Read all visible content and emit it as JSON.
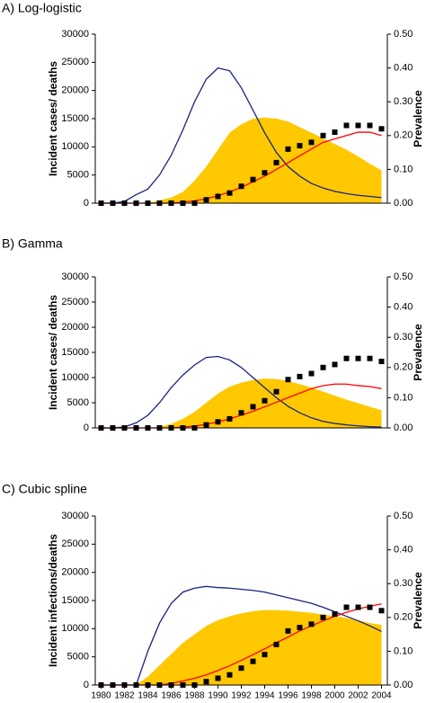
{
  "chart_data": [
    {
      "type": "line",
      "title": "A) Log-logistic",
      "ylabel": "Incident cases/ deaths",
      "y2label": "Prevalence",
      "x": [
        1980,
        1981,
        1982,
        1983,
        1984,
        1985,
        1986,
        1987,
        1988,
        1989,
        1990,
        1991,
        1992,
        1993,
        1994,
        1995,
        1996,
        1997,
        1998,
        1999,
        2000,
        2001,
        2002,
        2003,
        2004
      ],
      "xlim": [
        1979.5,
        2004.5
      ],
      "ylim": [
        0,
        30000
      ],
      "yticks": [
        0,
        5000,
        10000,
        15000,
        20000,
        25000,
        30000
      ],
      "y2lim": [
        0,
        0.5
      ],
      "y2ticks": [
        {
          "value": 0,
          "label": "0.00"
        },
        {
          "value": 0.1,
          "label": "0.10"
        },
        {
          "value": 0.2,
          "label": "0.20"
        },
        {
          "value": 0.3,
          "label": "0.30"
        },
        {
          "value": 0.4,
          "label": "0.40"
        },
        {
          "value": 0.5,
          "label": "0.50"
        }
      ],
      "series": [
        {
          "kind": "area",
          "color": "#ffc800",
          "values": [
            0,
            0,
            0,
            0,
            0,
            500,
            1000,
            2000,
            4000,
            6500,
            9500,
            12500,
            14000,
            15000,
            15200,
            15000,
            14500,
            13500,
            12500,
            11500,
            10500,
            9500,
            8300,
            7000,
            5800
          ]
        },
        {
          "kind": "line",
          "color": "#1a237e",
          "values": [
            0,
            0,
            300,
            1500,
            2500,
            5000,
            8500,
            13000,
            18000,
            22000,
            24000,
            23500,
            20500,
            16500,
            12500,
            9000,
            6500,
            4800,
            3500,
            2700,
            2100,
            1700,
            1400,
            1200,
            1000
          ]
        },
        {
          "kind": "line",
          "color": "#ff0000",
          "axis": "y2",
          "values": [
            0,
            0,
            0,
            0,
            0,
            0,
            0,
            0.003,
            0.007,
            0.013,
            0.022,
            0.033,
            0.047,
            0.063,
            0.08,
            0.1,
            0.12,
            0.14,
            0.16,
            0.18,
            0.19,
            0.2,
            0.21,
            0.21,
            0.2
          ]
        },
        {
          "kind": "scatter",
          "color": "#000000",
          "axis": "y2",
          "values": [
            0,
            0,
            0,
            0,
            0,
            0,
            0,
            0,
            0,
            0.01,
            0.02,
            0.03,
            0.05,
            0.07,
            0.09,
            0.12,
            0.16,
            0.17,
            0.18,
            0.2,
            0.21,
            0.23,
            0.23,
            0.23,
            0.22
          ]
        }
      ]
    },
    {
      "type": "line",
      "title": "B) Gamma",
      "ylabel": "Incident cases/ deaths",
      "y2label": "Prevalence",
      "x": [
        1980,
        1981,
        1982,
        1983,
        1984,
        1985,
        1986,
        1987,
        1988,
        1989,
        1990,
        1991,
        1992,
        1993,
        1994,
        1995,
        1996,
        1997,
        1998,
        1999,
        2000,
        2001,
        2002,
        2003,
        2004
      ],
      "xlim": [
        1979.5,
        2004.5
      ],
      "ylim": [
        0,
        30000
      ],
      "yticks": [
        0,
        5000,
        10000,
        15000,
        20000,
        25000,
        30000
      ],
      "y2lim": [
        0,
        0.5
      ],
      "y2ticks": [
        {
          "value": 0,
          "label": "0.00"
        },
        {
          "value": 0.1,
          "label": "0.10"
        },
        {
          "value": 0.2,
          "label": "0.20"
        },
        {
          "value": 0.3,
          "label": "0.30"
        },
        {
          "value": 0.4,
          "label": "0.40"
        },
        {
          "value": 0.5,
          "label": "0.50"
        }
      ],
      "series": [
        {
          "kind": "area",
          "color": "#ffc800",
          "values": [
            0,
            0,
            0,
            0,
            0,
            200,
            800,
            1800,
            3200,
            5000,
            6800,
            8200,
            9000,
            9500,
            9800,
            9700,
            9300,
            8700,
            8000,
            7200,
            6400,
            5600,
            4900,
            4200,
            3500
          ]
        },
        {
          "kind": "line",
          "color": "#1a237e",
          "values": [
            0,
            0,
            200,
            1000,
            2500,
            5000,
            8000,
            10500,
            12500,
            14000,
            14200,
            13500,
            12000,
            10000,
            8000,
            6000,
            4300,
            3000,
            2000,
            1300,
            900,
            600,
            400,
            250,
            150
          ]
        },
        {
          "kind": "line",
          "color": "#ff0000",
          "axis": "y2",
          "values": [
            0,
            0,
            0,
            0,
            0,
            0,
            0,
            0.003,
            0.006,
            0.012,
            0.02,
            0.03,
            0.042,
            0.055,
            0.07,
            0.085,
            0.1,
            0.115,
            0.13,
            0.14,
            0.145,
            0.145,
            0.14,
            0.137,
            0.13
          ]
        },
        {
          "kind": "scatter",
          "color": "#000000",
          "axis": "y2",
          "values": [
            0,
            0,
            0,
            0,
            0,
            0,
            0,
            0,
            0,
            0.01,
            0.02,
            0.03,
            0.05,
            0.07,
            0.09,
            0.12,
            0.16,
            0.17,
            0.18,
            0.2,
            0.21,
            0.23,
            0.23,
            0.23,
            0.22
          ]
        }
      ]
    },
    {
      "type": "line",
      "title": "C) Cubic spline",
      "ylabel": "Incident infections/deaths",
      "y2label": "Prevalence",
      "x": [
        1980,
        1981,
        1982,
        1983,
        1984,
        1985,
        1986,
        1987,
        1988,
        1989,
        1990,
        1991,
        1992,
        1993,
        1994,
        1995,
        1996,
        1997,
        1998,
        1999,
        2000,
        2001,
        2002,
        2003,
        2004
      ],
      "xlim": [
        1979.5,
        2004.5
      ],
      "xticks": [
        1980,
        1982,
        1984,
        1986,
        1988,
        1990,
        1992,
        1994,
        1996,
        1998,
        2000,
        2002,
        2004
      ],
      "ylim": [
        0,
        30000
      ],
      "yticks": [
        0,
        5000,
        10000,
        15000,
        20000,
        25000,
        30000
      ],
      "y2lim": [
        0,
        0.5
      ],
      "y2ticks": [
        {
          "value": 0,
          "label": "0.00"
        },
        {
          "value": 0.1,
          "label": "0.10"
        },
        {
          "value": 0.2,
          "label": "0.20"
        },
        {
          "value": 0.3,
          "label": "0.30"
        },
        {
          "value": 0.4,
          "label": "0.40"
        },
        {
          "value": 0.5,
          "label": "0.50"
        }
      ],
      "series": [
        {
          "kind": "area",
          "color": "#ffc800",
          "values": [
            0,
            0,
            0,
            0,
            1500,
            3500,
            5500,
            7500,
            9000,
            10500,
            11500,
            12200,
            12700,
            13100,
            13300,
            13300,
            13200,
            13000,
            12800,
            12500,
            12200,
            11900,
            11500,
            11000,
            10700
          ]
        },
        {
          "kind": "line",
          "color": "#1a237e",
          "values": [
            0,
            0,
            0,
            0,
            6000,
            11000,
            14500,
            16500,
            17200,
            17500,
            17300,
            17200,
            17000,
            16800,
            16500,
            16000,
            15500,
            15000,
            14500,
            13800,
            13000,
            12200,
            11400,
            10500,
            9500
          ]
        },
        {
          "kind": "line",
          "color": "#ff0000",
          "axis": "y2",
          "values": [
            0,
            0,
            0,
            0,
            0,
            0,
            0.005,
            0.012,
            0.02,
            0.03,
            0.043,
            0.057,
            0.073,
            0.09,
            0.107,
            0.125,
            0.142,
            0.16,
            0.175,
            0.19,
            0.203,
            0.215,
            0.225,
            0.233,
            0.24
          ]
        },
        {
          "kind": "scatter",
          "color": "#000000",
          "axis": "y2",
          "values": [
            0,
            0,
            0,
            0,
            0,
            0,
            0,
            0,
            0,
            0.01,
            0.02,
            0.03,
            0.05,
            0.07,
            0.09,
            0.12,
            0.16,
            0.17,
            0.18,
            0.2,
            0.21,
            0.23,
            0.23,
            0.23,
            0.22
          ]
        }
      ]
    }
  ]
}
